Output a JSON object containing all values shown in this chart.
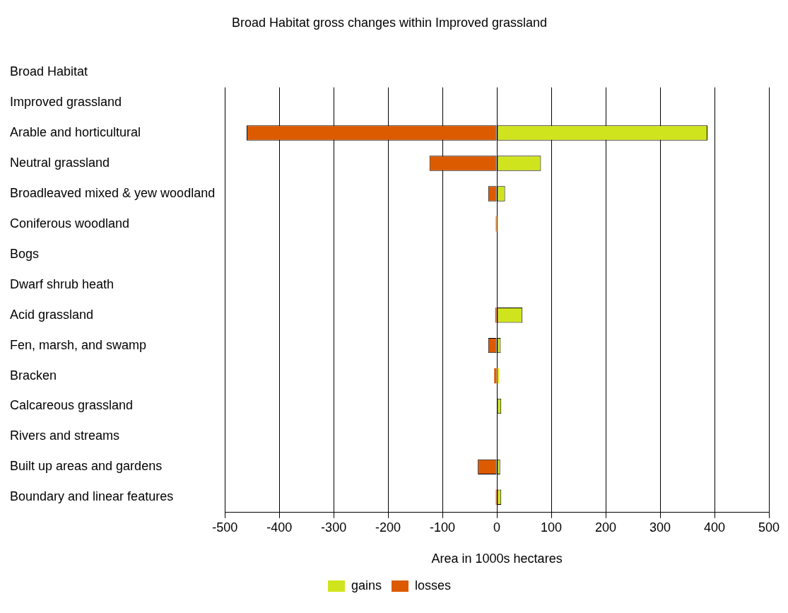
{
  "chart_data": {
    "type": "bar",
    "orientation": "horizontal",
    "stacked": true,
    "title": "Broad Habitat gross changes within Improved grassland",
    "ylabel": "Broad Habitat",
    "xlabel": "Area in 1000s hectares",
    "categories": [
      "Improved grassland",
      "Arable and horticultural",
      "Neutral grassland",
      "Broadleaved mixed & yew woodland",
      "Coniferous woodland",
      "Bogs",
      "Dwarf shrub heath",
      "Acid grassland",
      "Fen, marsh, and swamp",
      "Bracken",
      "Calcareous grassland",
      "Rivers and streams",
      "Built up areas and gardens",
      "Boundary and linear features"
    ],
    "series": [
      {
        "name": "gains",
        "color": "#d0e41e",
        "values": [
          null,
          387,
          81,
          15,
          2,
          null,
          null,
          47,
          7,
          4,
          8,
          null,
          6,
          8
        ]
      },
      {
        "name": "losses",
        "color": "#dc5a00",
        "values": [
          null,
          -460,
          -124,
          -16,
          -2,
          null,
          null,
          -3,
          -16,
          -5,
          null,
          null,
          -35,
          -2
        ]
      }
    ],
    "xlim": [
      -500,
      500
    ],
    "xticks": [
      -500,
      -400,
      -300,
      -200,
      -100,
      0,
      100,
      200,
      300,
      400,
      500
    ],
    "grid": "x",
    "legend": "bottom"
  }
}
